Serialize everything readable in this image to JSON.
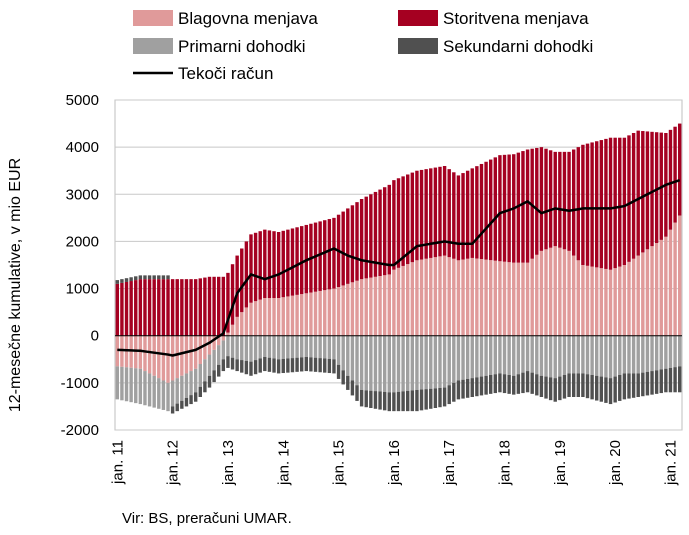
{
  "chart_data": {
    "type": "bar",
    "ylabel": "12-mesečne kumulative, v mio EUR",
    "ylim": [
      -2000,
      5000
    ],
    "yticks": [
      -2000,
      -1000,
      0,
      1000,
      2000,
      3000,
      4000,
      5000
    ],
    "grid": true,
    "legend_position": "top",
    "xtick_labels": [
      "jan. 11",
      "jan. 12",
      "jan. 13",
      "jan. 14",
      "jan. 15",
      "jan. 16",
      "jan. 17",
      "jan. 18",
      "jan. 19",
      "jan. 20",
      "jan. 21"
    ],
    "start": "2011-01",
    "x": [
      "2011-01",
      "2011-06",
      "2011-12",
      "2012-01",
      "2012-06",
      "2012-09",
      "2012-12",
      "2013-03",
      "2013-06",
      "2013-09",
      "2013-12",
      "2014-06",
      "2014-12",
      "2015-03",
      "2015-06",
      "2015-12",
      "2016-01",
      "2016-06",
      "2016-12",
      "2017-03",
      "2017-06",
      "2017-12",
      "2018-03",
      "2018-06",
      "2018-09",
      "2018-12",
      "2019-03",
      "2019-06",
      "2019-12",
      "2020-03",
      "2020-06",
      "2020-12",
      "2021-03"
    ],
    "series": [
      {
        "name": "Blagovna menjava",
        "color": "#e09a9a",
        "style": "stacked-bar",
        "values": [
          -650,
          -700,
          -1000,
          -950,
          -700,
          -400,
          -100,
          400,
          700,
          800,
          800,
          900,
          1000,
          1100,
          1200,
          1300,
          1400,
          1600,
          1700,
          1600,
          1650,
          1580,
          1550,
          1550,
          1800,
          1900,
          1800,
          1500,
          1400,
          1500,
          1700,
          2100,
          2550
        ]
      },
      {
        "name": "Storitvena menjava",
        "color": "#a50021",
        "style": "stacked-bar",
        "values": [
          1100,
          1200,
          1200,
          1200,
          1200,
          1250,
          1250,
          1300,
          1450,
          1450,
          1400,
          1450,
          1500,
          1600,
          1700,
          1900,
          1900,
          1900,
          1900,
          1800,
          1900,
          2250,
          2300,
          2400,
          2200,
          2000,
          2100,
          2550,
          2800,
          2700,
          2650,
          2200,
          1950
        ]
      },
      {
        "name": "Primarni dohodki",
        "color": "#a0a0a0",
        "style": "stacked-bar",
        "values": [
          -700,
          -750,
          -600,
          -550,
          -500,
          -450,
          -400,
          -500,
          -550,
          -450,
          -500,
          -450,
          -500,
          -850,
          -1150,
          -1200,
          -1200,
          -1150,
          -1100,
          -950,
          -900,
          -800,
          -850,
          -750,
          -850,
          -900,
          -800,
          -800,
          -900,
          -800,
          -800,
          -700,
          -650
        ]
      },
      {
        "name": "Sekundarni dohodki",
        "color": "#505050",
        "style": "stacked-bar",
        "values": [
          80,
          80,
          80,
          -150,
          -200,
          -250,
          -250,
          -250,
          -300,
          -300,
          -300,
          -300,
          -300,
          -300,
          -350,
          -400,
          -400,
          -450,
          -400,
          -400,
          -400,
          -400,
          -400,
          -450,
          -450,
          -500,
          -500,
          -500,
          -550,
          -550,
          -500,
          -500,
          -550
        ]
      },
      {
        "name": "Tekoči račun",
        "color": "#000000",
        "style": "line",
        "values": [
          -300,
          -320,
          -400,
          -420,
          -300,
          -150,
          50,
          900,
          1300,
          1200,
          1300,
          1600,
          1850,
          1700,
          1600,
          1500,
          1500,
          1900,
          2000,
          1950,
          1950,
          2600,
          2700,
          2850,
          2600,
          2700,
          2650,
          2700,
          2700,
          2750,
          2900,
          3200,
          3300
        ]
      }
    ]
  },
  "source": "Vir: BS, preračuni UMAR."
}
